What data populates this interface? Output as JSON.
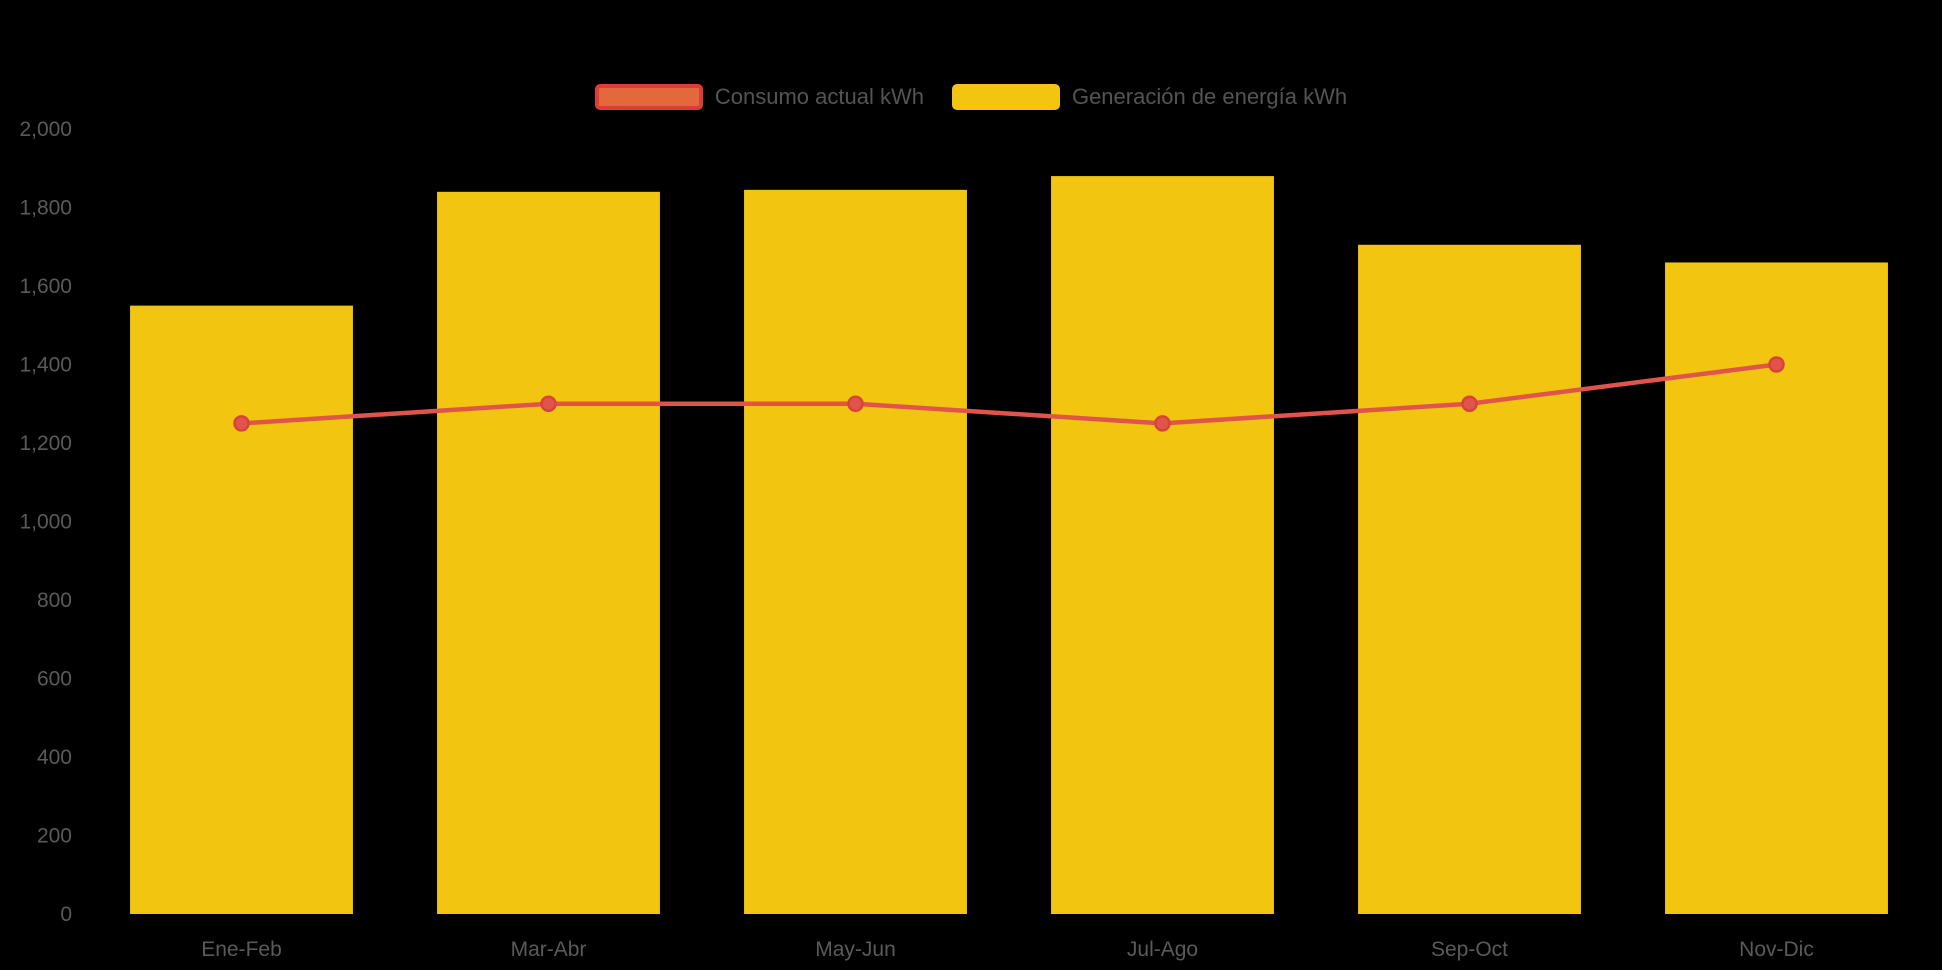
{
  "background_color": "#000000",
  "text_color": "#5a5a5a",
  "legend": [
    {
      "label": "Consumo actual kWh",
      "swatch_fill": "#e3693d",
      "swatch_border": "#db3e35",
      "series_type": "line"
    },
    {
      "label": "Generación de energía kWh",
      "swatch_fill": "#f2c511",
      "swatch_border": "#f2c511",
      "series_type": "bar"
    }
  ],
  "chart_data": {
    "type": "bar",
    "subtype": "bar+line combo",
    "categories": [
      "Ene-Feb",
      "Mar-Abr",
      "May-Jun",
      "Jul-Ago",
      "Sep-Oct",
      "Nov-Dic"
    ],
    "series": [
      {
        "name": "Generación de energía kWh",
        "type": "bar",
        "color": "#f2c511",
        "values": [
          1550,
          1840,
          1845,
          1880,
          1705,
          1660
        ]
      },
      {
        "name": "Consumo actual kWh",
        "type": "line",
        "color": "#e0544c",
        "marker_stroke": "#d84339",
        "values": [
          1250,
          1300,
          1300,
          1250,
          1300,
          1400
        ]
      }
    ],
    "title": "",
    "xlabel": "",
    "ylabel": "",
    "ylim": [
      0,
      2000
    ],
    "ytick_interval": 200,
    "ytick_labels": [
      "0",
      "200",
      "400",
      "600",
      "800",
      "1,000",
      "1,200",
      "1,400",
      "1,600",
      "1,800",
      "2,000"
    ],
    "grid": false,
    "legend_position": "top-center"
  }
}
